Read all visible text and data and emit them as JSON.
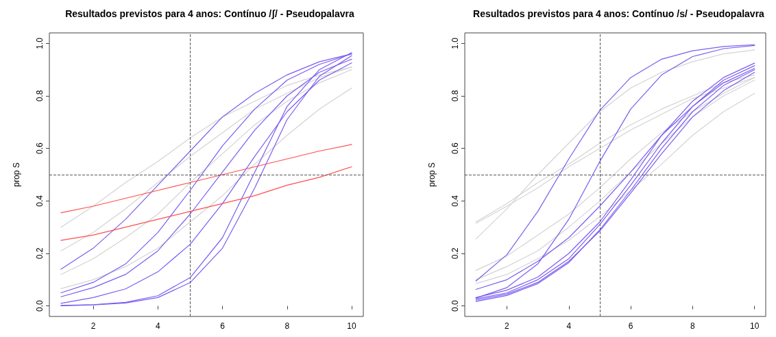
{
  "chart_data": [
    {
      "type": "line",
      "title": "Resultados previstos para 4 anos: Contínuo /ʃ/ - Pseudopalavra",
      "ylabel": "prop S",
      "x": [
        1,
        2,
        3,
        4,
        5,
        6,
        7,
        8,
        9,
        10
      ],
      "xlim": [
        0.64,
        10.36
      ],
      "xticks": [
        2,
        4,
        6,
        8,
        10
      ],
      "ylim": [
        -0.04,
        1.04
      ],
      "yticks": [
        {
          "value": 0,
          "label": "0.0"
        },
        {
          "value": 0.2,
          "label": "0.2"
        },
        {
          "value": 0.4,
          "label": "0.4"
        },
        {
          "value": 0.6,
          "label": "0.6"
        },
        {
          "value": 0.8,
          "label": "0.8"
        },
        {
          "value": 1,
          "label": "1.0"
        }
      ],
      "grid": false,
      "marker": "none",
      "line_style": "solid",
      "series": [
        {
          "color": "#d3d3d3",
          "values": [
            0.3,
            0.38,
            0.47,
            0.55,
            0.64,
            0.72,
            0.78,
            0.84,
            0.88,
            0.91
          ]
        },
        {
          "color": "#d3d3d3",
          "values": [
            0.21,
            0.28,
            0.37,
            0.47,
            0.57,
            0.66,
            0.75,
            0.81,
            0.87,
            0.91
          ]
        },
        {
          "color": "#d3d3d3",
          "values": [
            0.12,
            0.18,
            0.26,
            0.35,
            0.47,
            0.58,
            0.69,
            0.78,
            0.85,
            0.9
          ]
        },
        {
          "color": "#d3d3d3",
          "values": [
            0.066,
            0.1,
            0.15,
            0.22,
            0.32,
            0.42,
            0.54,
            0.65,
            0.75,
            0.83
          ]
        },
        {
          "color": "#7b5cf0",
          "values": [
            0.14,
            0.22,
            0.33,
            0.46,
            0.59,
            0.72,
            0.81,
            0.88,
            0.93,
            0.96
          ]
        },
        {
          "color": "#7b5cf0",
          "values": [
            0.05,
            0.09,
            0.16,
            0.28,
            0.44,
            0.61,
            0.75,
            0.86,
            0.92,
            0.96
          ]
        },
        {
          "color": "#7b5cf0",
          "values": [
            0.035,
            0.07,
            0.12,
            0.21,
            0.35,
            0.51,
            0.67,
            0.8,
            0.89,
            0.94
          ]
        },
        {
          "color": "#7b5cf0",
          "values": [
            0.01,
            0.032,
            0.065,
            0.13,
            0.235,
            0.39,
            0.57,
            0.74,
            0.86,
            0.926
          ]
        },
        {
          "color": "#7b5cf0",
          "values": [
            0.002,
            0.005,
            0.014,
            0.039,
            0.108,
            0.26,
            0.51,
            0.76,
            0.9,
            0.965
          ]
        },
        {
          "color": "#7b5cf0",
          "values": [
            0.001,
            0.004,
            0.011,
            0.032,
            0.089,
            0.22,
            0.45,
            0.71,
            0.875,
            0.953
          ]
        },
        {
          "color": "#ff4d4d",
          "values": [
            0.355,
            0.38,
            0.41,
            0.44,
            0.47,
            0.5,
            0.53,
            0.56,
            0.59,
            0.615
          ]
        },
        {
          "color": "#ff4d4d",
          "values": [
            0.25,
            0.27,
            0.3,
            0.33,
            0.36,
            0.39,
            0.42,
            0.46,
            0.49,
            0.53
          ]
        }
      ],
      "ref_lines": [
        {
          "axis": "x",
          "value": 5,
          "color": "#555555",
          "line_style": "dashed"
        },
        {
          "axis": "y",
          "value": 0.5,
          "color": "#555555",
          "line_style": "dashed"
        }
      ]
    },
    {
      "type": "line",
      "title": "Resultados previstos para 4 anos: Contínuo /s/ - Pseudopalavra",
      "ylabel": "prop S",
      "x": [
        1,
        2,
        3,
        4,
        5,
        6,
        7,
        8,
        9,
        10
      ],
      "xlim": [
        0.64,
        10.36
      ],
      "xticks": [
        2,
        4,
        6,
        8,
        10
      ],
      "ylim": [
        -0.04,
        1.04
      ],
      "yticks": [
        {
          "value": 0,
          "label": "0.0"
        },
        {
          "value": 0.2,
          "label": "0.2"
        },
        {
          "value": 0.4,
          "label": "0.4"
        },
        {
          "value": 0.6,
          "label": "0.6"
        },
        {
          "value": 0.8,
          "label": "0.8"
        },
        {
          "value": 1,
          "label": "1.0"
        }
      ],
      "grid": false,
      "marker": "none",
      "line_style": "solid",
      "series": [
        {
          "color": "#d3d3d3",
          "values": [
            0.255,
            0.37,
            0.5,
            0.62,
            0.74,
            0.83,
            0.89,
            0.93,
            0.96,
            0.975
          ]
        },
        {
          "color": "#d3d3d3",
          "values": [
            0.32,
            0.39,
            0.47,
            0.54,
            0.62,
            0.69,
            0.75,
            0.8,
            0.85,
            0.88
          ]
        },
        {
          "color": "#d3d3d3",
          "values": [
            0.315,
            0.38,
            0.45,
            0.53,
            0.6,
            0.67,
            0.73,
            0.79,
            0.83,
            0.87
          ]
        },
        {
          "color": "#d3d3d3",
          "values": [
            0.135,
            0.19,
            0.27,
            0.35,
            0.45,
            0.56,
            0.66,
            0.74,
            0.81,
            0.87
          ]
        },
        {
          "color": "#d3d3d3",
          "values": [
            0.1,
            0.15,
            0.21,
            0.3,
            0.4,
            0.51,
            0.62,
            0.72,
            0.8,
            0.86
          ]
        },
        {
          "color": "#d3d3d3",
          "values": [
            0.085,
            0.12,
            0.18,
            0.25,
            0.34,
            0.44,
            0.54,
            0.65,
            0.74,
            0.81
          ]
        },
        {
          "color": "#7b5cf0",
          "values": [
            0.095,
            0.195,
            0.36,
            0.56,
            0.745,
            0.87,
            0.94,
            0.972,
            0.988,
            0.995
          ]
        },
        {
          "color": "#7b5cf0",
          "values": [
            0.03,
            0.07,
            0.16,
            0.33,
            0.55,
            0.75,
            0.88,
            0.95,
            0.98,
            0.992
          ]
        },
        {
          "color": "#7b5cf0",
          "values": [
            0.063,
            0.1,
            0.17,
            0.26,
            0.38,
            0.51,
            0.65,
            0.76,
            0.85,
            0.905
          ]
        },
        {
          "color": "#7b5cf0",
          "values": [
            0.032,
            0.06,
            0.11,
            0.2,
            0.32,
            0.48,
            0.65,
            0.78,
            0.87,
            0.925
          ]
        },
        {
          "color": "#7b5cf0",
          "values": [
            0.027,
            0.05,
            0.1,
            0.18,
            0.31,
            0.46,
            0.62,
            0.76,
            0.86,
            0.915
          ]
        },
        {
          "color": "#7b5cf0",
          "values": [
            0.022,
            0.045,
            0.09,
            0.17,
            0.285,
            0.43,
            0.58,
            0.72,
            0.82,
            0.89
          ]
        },
        {
          "color": "#7b5cf0",
          "values": [
            0.017,
            0.04,
            0.085,
            0.165,
            0.29,
            0.44,
            0.6,
            0.74,
            0.84,
            0.9
          ]
        }
      ],
      "ref_lines": [
        {
          "axis": "x",
          "value": 5,
          "color": "#555555",
          "line_style": "dashed"
        },
        {
          "axis": "y",
          "value": 0.5,
          "color": "#555555",
          "line_style": "dashed"
        }
      ]
    }
  ]
}
